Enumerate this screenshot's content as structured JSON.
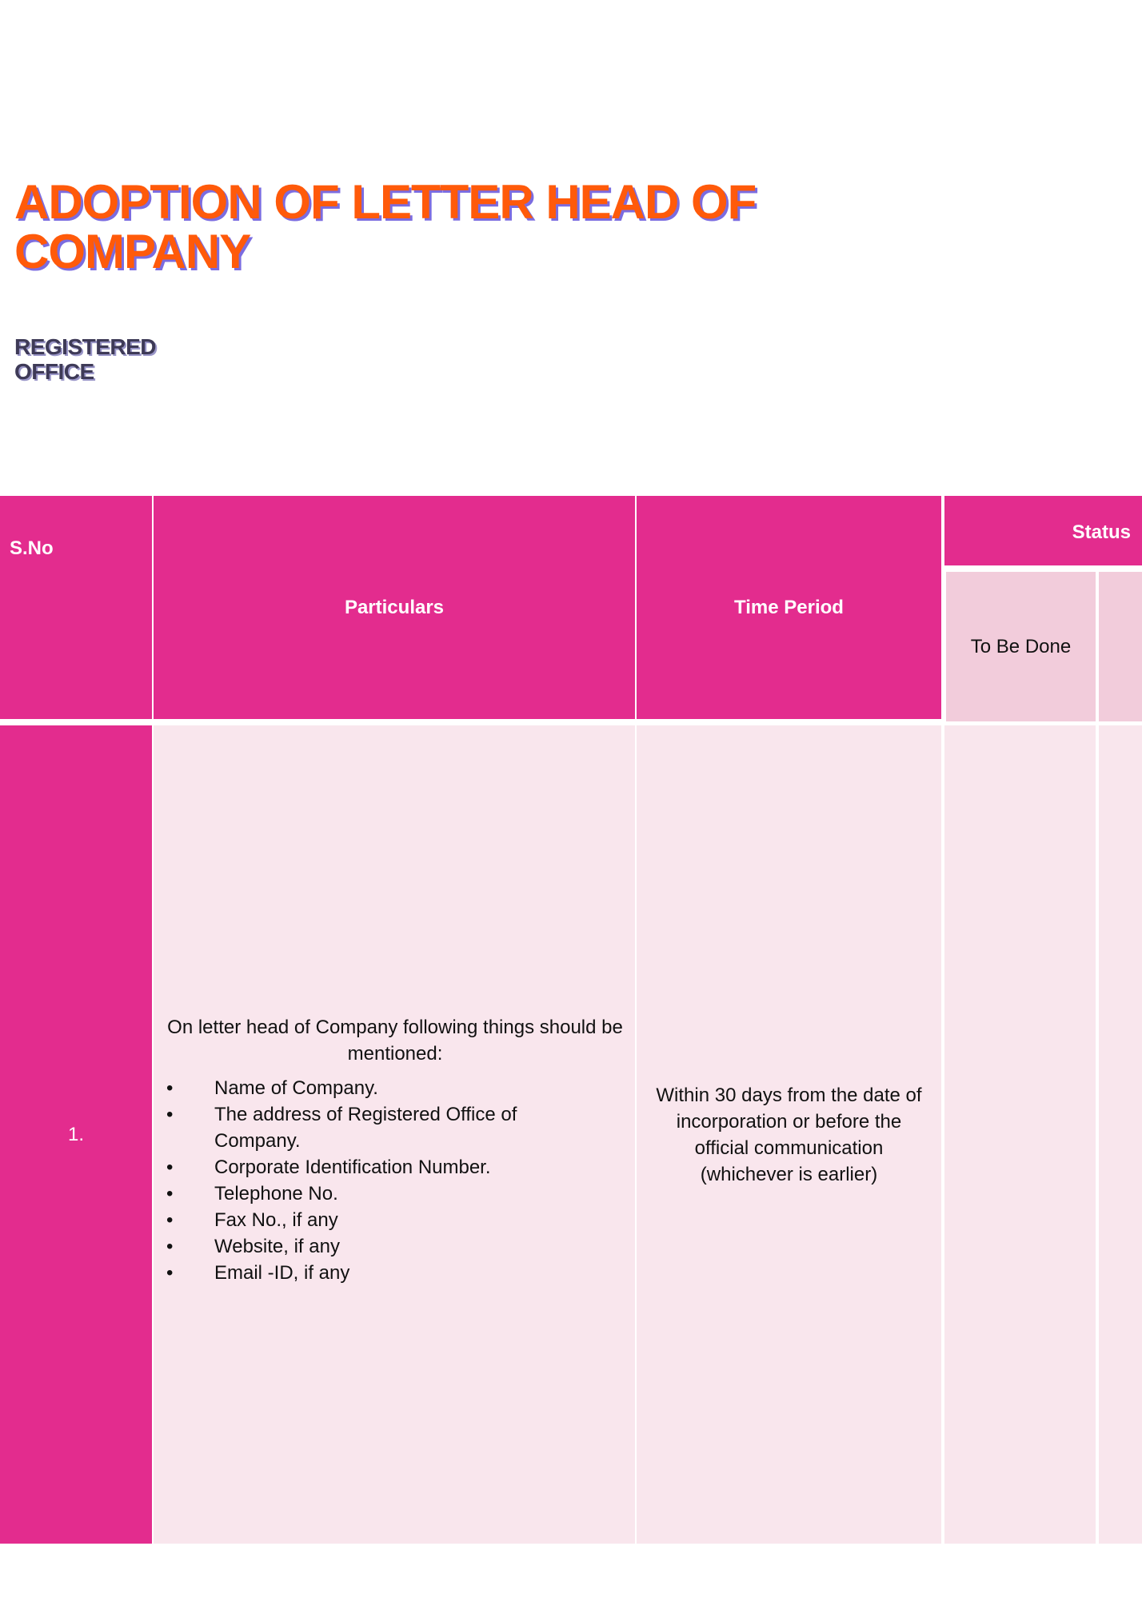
{
  "title": "ADOPTION OF LETTER HEAD OF COMPANY",
  "subtitle_lines": [
    "REGISTERED",
    "OFFICE"
  ],
  "colors": {
    "header": "#E32C8E",
    "subheader": "#F2CCDB",
    "body": "#F9E6ED",
    "title": "#FF5A0A"
  },
  "table": {
    "headers": {
      "sno": "S.No",
      "particulars": "Particulars",
      "time_period": "Time Period",
      "status": "Status",
      "to_be_done": "To Be Done"
    },
    "rows": [
      {
        "sno": "1.",
        "particulars_intro": "On letter head of Company following things should be mentioned:",
        "items": [
          "Name of Company.",
          "The address of Registered Office of Company.",
          "Corporate Identification Number.",
          "Telephone No.",
          "Fax No., if any",
          "Website, if any",
          "Email -ID, if any"
        ],
        "time_period": "Within 30 days from the date of incorporation or before the official communication (whichever is earlier)"
      }
    ]
  }
}
